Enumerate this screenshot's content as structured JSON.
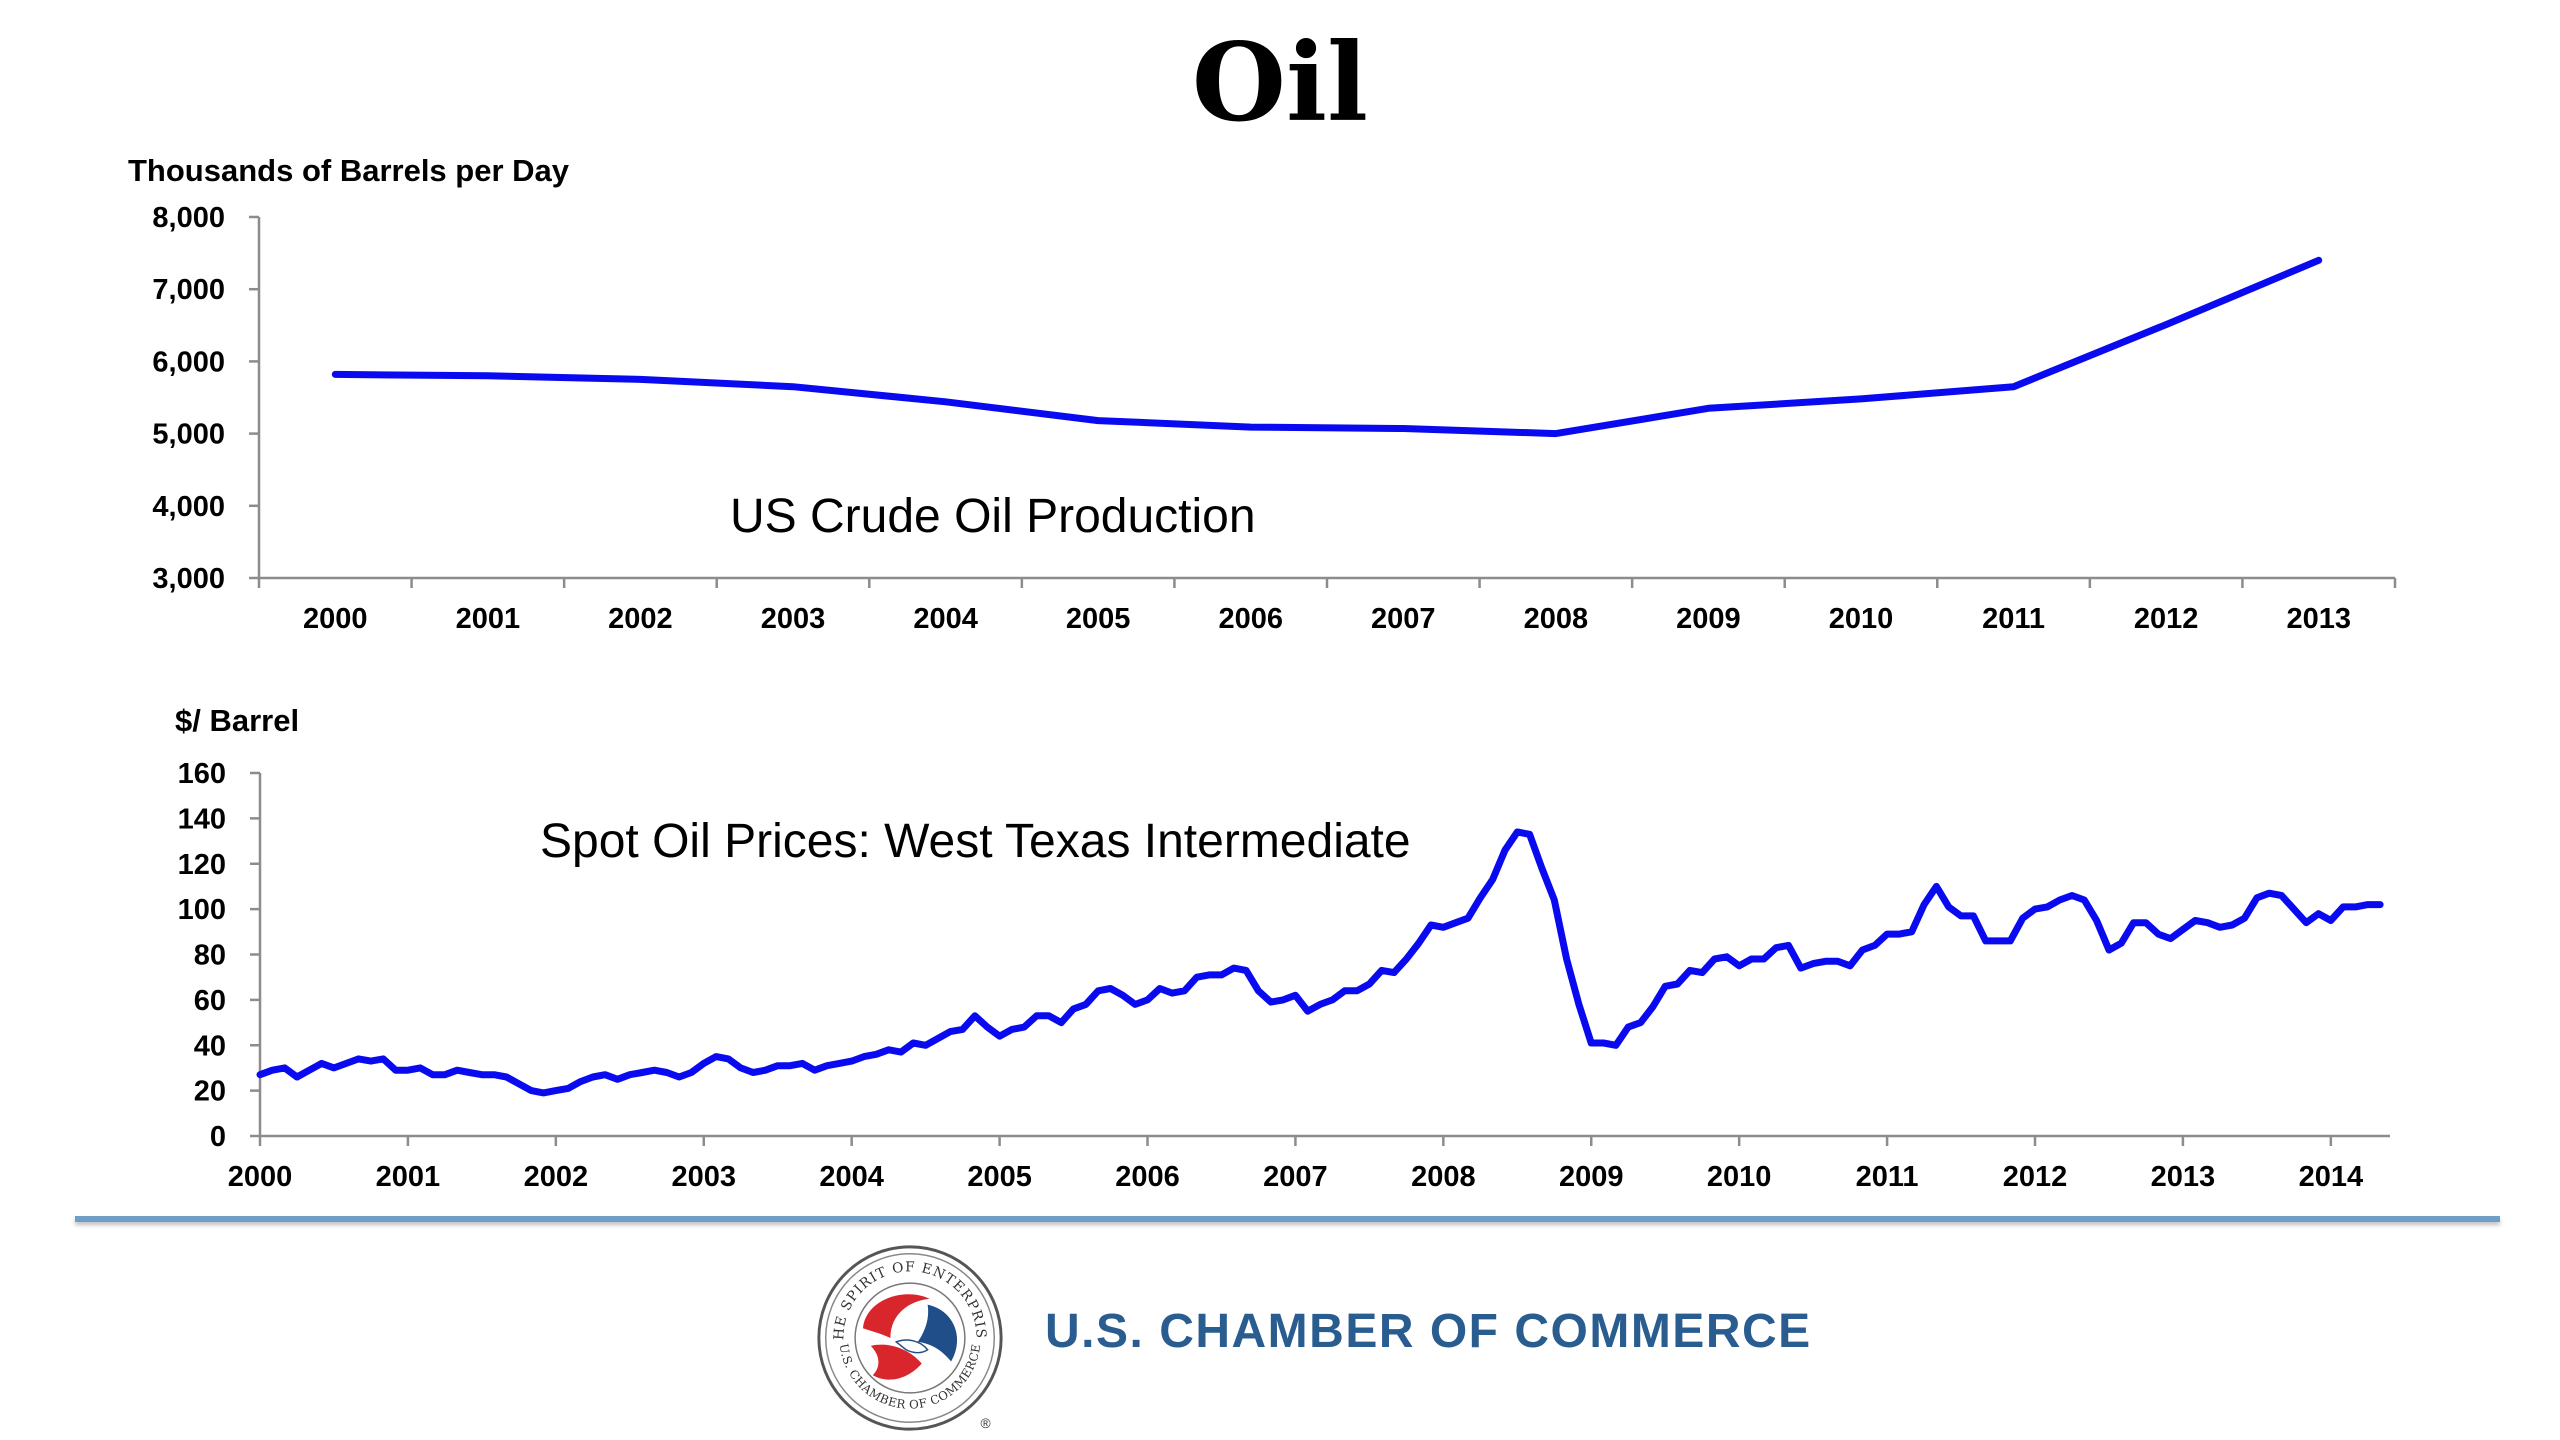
{
  "page": {
    "title": "Oil"
  },
  "footer": {
    "org_name": "U.S. CHAMBER OF COMMERCE",
    "seal_text_top": "THE SPIRIT OF ENTERPRISE",
    "seal_text_bottom": "U.S. CHAMBER OF COMMERCE",
    "seal_mark": "®"
  },
  "colors": {
    "series": "#0a0af0",
    "axis": "#8c8c8c",
    "divider": "#6f9fc7",
    "org_text": "#2a5d8f"
  },
  "chart_data": [
    {
      "type": "line",
      "title": "US Crude Oil Production",
      "ylabel": "Thousands of Barrels per Day",
      "xlabel": "",
      "ylim": [
        3000,
        8000
      ],
      "yticks": [
        "3,000",
        "4,000",
        "5,000",
        "6,000",
        "7,000",
        "8,000"
      ],
      "ytick_values": [
        3000,
        4000,
        5000,
        6000,
        7000,
        8000
      ],
      "categories": [
        "2000",
        "2001",
        "2002",
        "2003",
        "2004",
        "2005",
        "2006",
        "2007",
        "2008",
        "2009",
        "2010",
        "2011",
        "2012",
        "2013"
      ],
      "series": [
        {
          "values": [
            5820,
            5800,
            5750,
            5650,
            5440,
            5180,
            5090,
            5070,
            5000,
            5350,
            5480,
            5650,
            6510,
            7400
          ]
        }
      ],
      "grid": false,
      "legend": "none"
    },
    {
      "type": "line",
      "title": "Spot Oil Prices: West Texas Intermediate",
      "ylabel": "$/ Barrel",
      "xlabel": "",
      "ylim": [
        0,
        160
      ],
      "yticks": [
        "0",
        "20",
        "40",
        "60",
        "80",
        "100",
        "120",
        "140",
        "160"
      ],
      "ytick_values": [
        0,
        20,
        40,
        60,
        80,
        100,
        120,
        140,
        160
      ],
      "xlim": [
        2000,
        2014.4
      ],
      "xticks": [
        "2000",
        "2001",
        "2002",
        "2003",
        "2004",
        "2005",
        "2006",
        "2007",
        "2008",
        "2009",
        "2010",
        "2011",
        "2012",
        "2013",
        "2014"
      ],
      "x_start": "2000-01",
      "x_step": "monthly",
      "series": [
        {
          "values": [
            27,
            29,
            30,
            26,
            29,
            32,
            30,
            32,
            34,
            33,
            34,
            29,
            29,
            30,
            27,
            27,
            29,
            28,
            27,
            27,
            26,
            23,
            20,
            19,
            20,
            21,
            24,
            26,
            27,
            25,
            27,
            28,
            29,
            28,
            26,
            28,
            32,
            35,
            34,
            30,
            28,
            29,
            31,
            31,
            32,
            29,
            31,
            32,
            33,
            35,
            36,
            38,
            37,
            41,
            40,
            43,
            46,
            47,
            53,
            48,
            44,
            47,
            48,
            53,
            53,
            50,
            56,
            58,
            64,
            65,
            62,
            58,
            60,
            65,
            63,
            64,
            70,
            71,
            71,
            74,
            73,
            64,
            59,
            60,
            62,
            55,
            58,
            60,
            64,
            64,
            67,
            73,
            72,
            78,
            85,
            93,
            92,
            94,
            96,
            105,
            113,
            126,
            134,
            133,
            118,
            104,
            78,
            58,
            41,
            41,
            40,
            48,
            50,
            57,
            66,
            67,
            73,
            72,
            78,
            79,
            75,
            78,
            78,
            83,
            84,
            74,
            76,
            77,
            77,
            75,
            82,
            84,
            89,
            89,
            90,
            102,
            110,
            101,
            97,
            97,
            86,
            86,
            86,
            96,
            100,
            101,
            104,
            106,
            104,
            95,
            82,
            85,
            94,
            94,
            89,
            87,
            91,
            95,
            94,
            92,
            93,
            96,
            105,
            107,
            106,
            100,
            94,
            98,
            95,
            101,
            101,
            102,
            102
          ]
        }
      ],
      "grid": false,
      "legend": "none"
    }
  ]
}
